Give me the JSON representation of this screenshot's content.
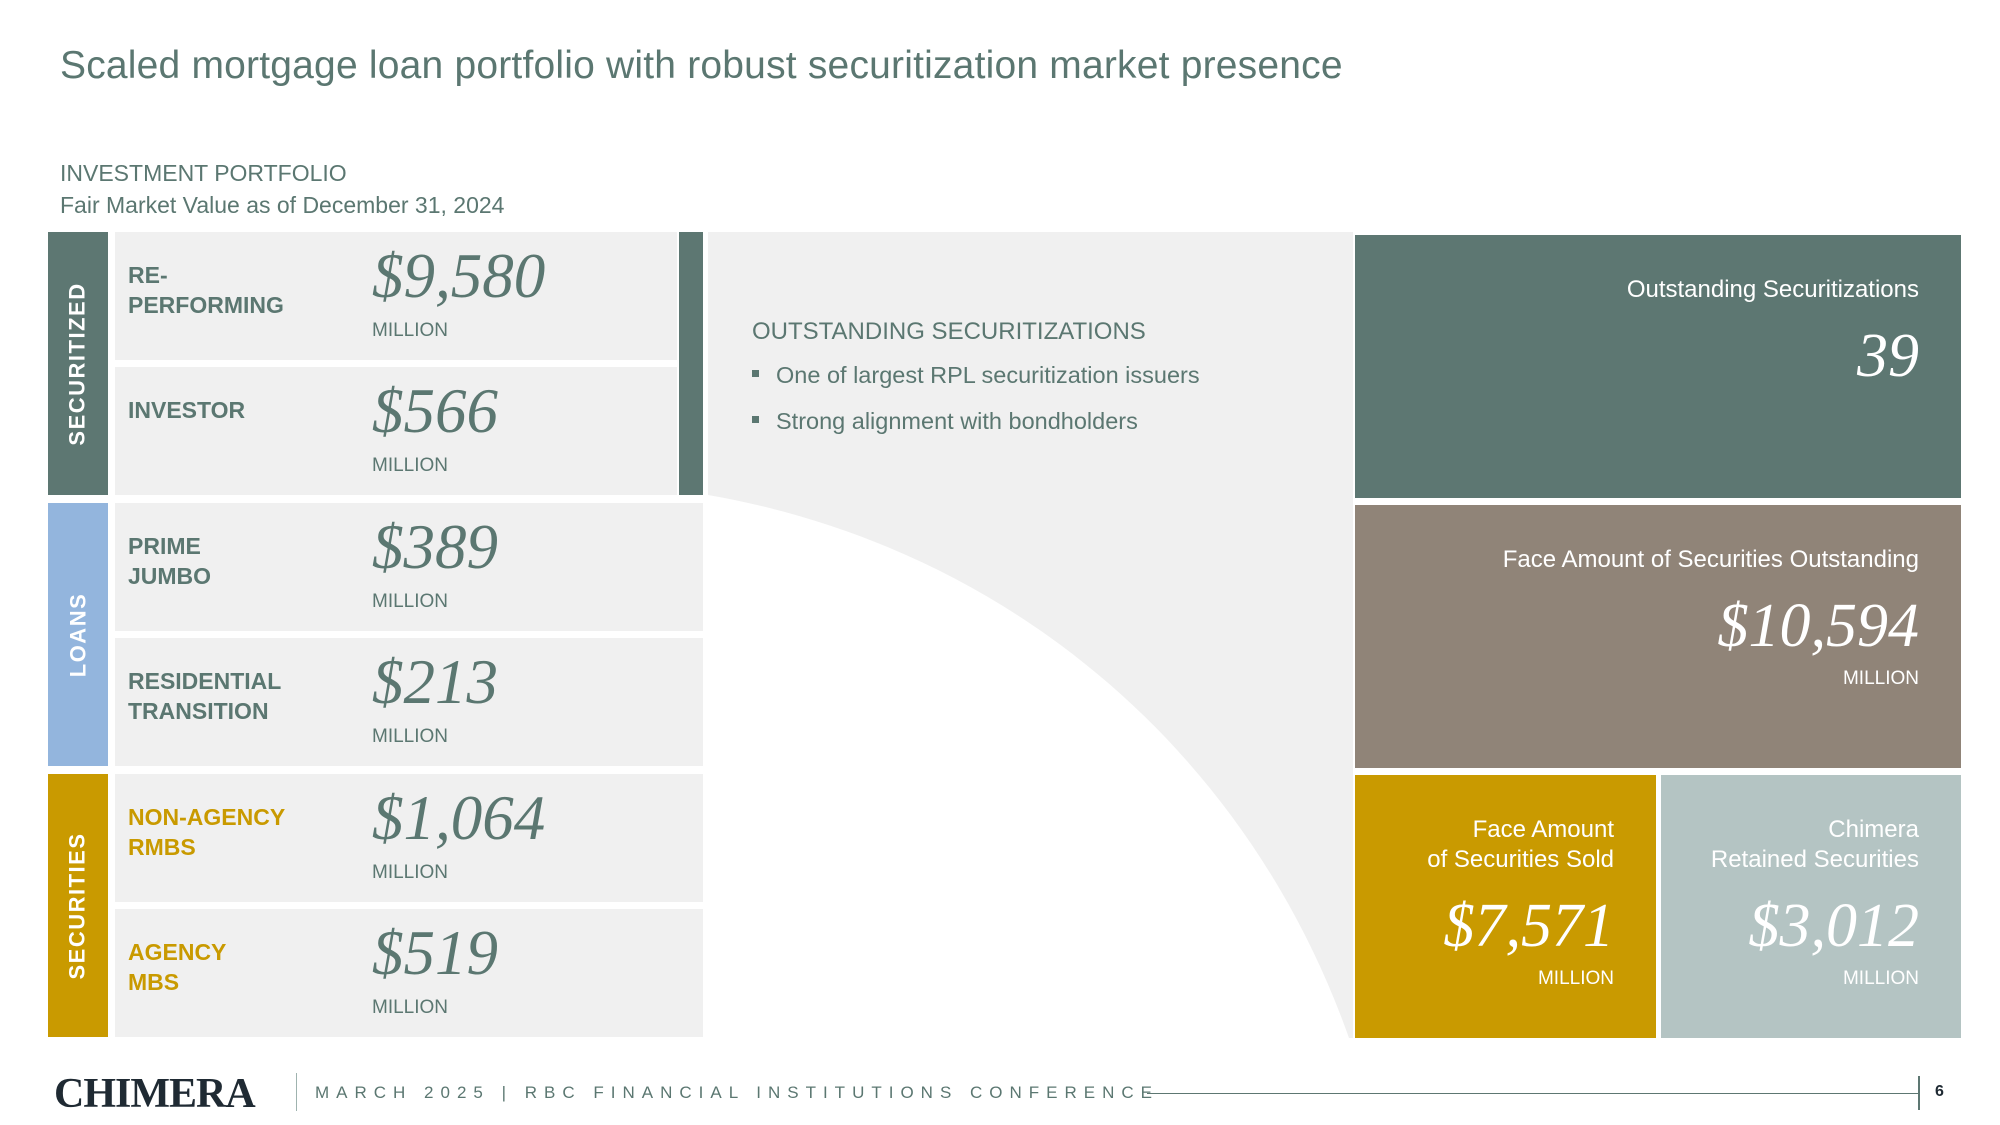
{
  "title": "Scaled mortgage loan portfolio with robust securitization market presence",
  "subtitle": "INVESTMENT PORTFOLIO",
  "subtitle2": "Fair Market Value as of December 31, 2024",
  "categories": {
    "securitized": "SECURITIZED",
    "loans": "LOANS",
    "securities": "SECURITIES"
  },
  "rows": [
    {
      "label": "RE-\nPERFORMING",
      "value": "$9,580",
      "unit": "MILLION"
    },
    {
      "label": "INVESTOR",
      "value": "$566",
      "unit": "MILLION"
    },
    {
      "label": "PRIME\nJUMBO",
      "value": "$389",
      "unit": "MILLION"
    },
    {
      "label": "RESIDENTIAL\nTRANSITION",
      "value": "$213",
      "unit": "MILLION"
    },
    {
      "label": "NON-AGENCY\nRMBS",
      "value": "$1,064",
      "unit": "MILLION"
    },
    {
      "label": "AGENCY\nMBS",
      "value": "$519",
      "unit": "MILLION"
    }
  ],
  "outstanding": {
    "heading": "OUTSTANDING SECURITIZATIONS",
    "bullets": [
      "One of largest RPL securitization issuers",
      "Strong alignment with bondholders"
    ]
  },
  "boxes": {
    "count": {
      "label": "Outstanding Securitizations",
      "value": "39"
    },
    "face": {
      "label": "Face Amount of Securities Outstanding",
      "value": "$10,594",
      "unit": "MILLION"
    },
    "sold": {
      "label": "Face Amount\nof Securities Sold",
      "value": "$7,571",
      "unit": "MILLION"
    },
    "retained": {
      "label": "Chimera\nRetained Securities",
      "value": "$3,012",
      "unit": "MILLION"
    }
  },
  "footer": {
    "logo": "CHIMERA",
    "text": "MARCH 2025  |  RBC FINANCIAL INSTITUTIONS CONFERENCE",
    "page": "6"
  },
  "colors": {
    "teal": "#5d7772",
    "blue": "#93b5dd",
    "gold": "#c99a00",
    "taupe": "#908478",
    "grey_blue": "#b4c4c3",
    "panel": "#f0f0f0"
  }
}
